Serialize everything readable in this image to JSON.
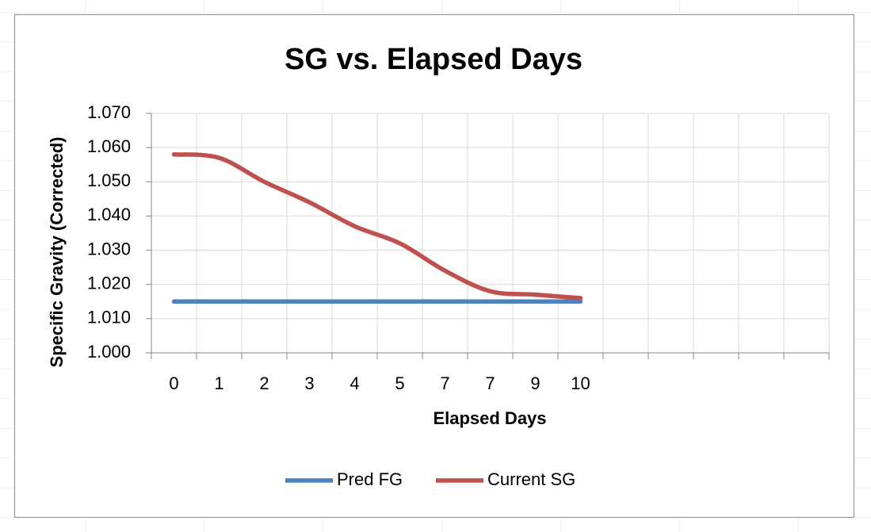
{
  "chart_data": {
    "type": "line",
    "title": "SG vs. Elapsed Days",
    "x_label": "Elapsed Days",
    "y_label": "Specific Gravity (Corrected)",
    "categories": [
      "0",
      "1",
      "2",
      "3",
      "4",
      "5",
      "7",
      "7",
      "9",
      "10",
      null,
      null,
      null,
      null,
      null
    ],
    "series": [
      {
        "name": "Pred FG",
        "color": "#4f81bd",
        "values": [
          1.015,
          1.015,
          1.015,
          1.015,
          1.015,
          1.015,
          1.015,
          1.015,
          1.015,
          1.015,
          null,
          null,
          null,
          null,
          null
        ]
      },
      {
        "name": "Current SG",
        "color": "#c0504d",
        "values": [
          1.058,
          1.057,
          1.05,
          1.044,
          1.037,
          1.032,
          1.024,
          1.018,
          1.017,
          1.016,
          null,
          null,
          null,
          null,
          null
        ]
      }
    ],
    "ylim": [
      1.0,
      1.07
    ],
    "yticks": [
      {
        "value": 1.0,
        "label": "1.000"
      },
      {
        "value": 1.01,
        "label": "1.010"
      },
      {
        "value": 1.02,
        "label": "1.020"
      },
      {
        "value": 1.03,
        "label": "1.030"
      },
      {
        "value": 1.04,
        "label": "1.040"
      },
      {
        "value": 1.05,
        "label": "1.050"
      },
      {
        "value": 1.06,
        "label": "1.060"
      },
      {
        "value": 1.07,
        "label": "1.070"
      }
    ],
    "grid": true,
    "smooth": true,
    "legend": "bottom"
  }
}
